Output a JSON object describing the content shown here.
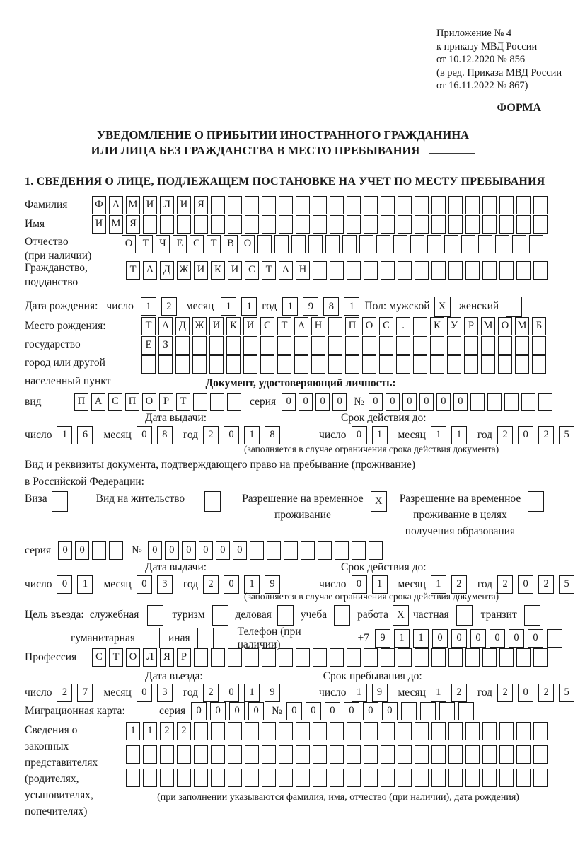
{
  "page": {
    "annex_lines": [
      "Приложение № 4",
      "к приказу МВД России",
      "от 10.12.2020 № 856",
      "(в ред. Приказа МВД России",
      "от 16.11.2022 № 867)"
    ],
    "form_marker": "ФОРМА",
    "title_line1": "УВЕДОМЛЕНИЕ О ПРИБЫТИИ ИНОСТРАННОГО ГРАЖДАНИНА",
    "title_line2": "ИЛИ ЛИЦА БЕЗ ГРАЖДАНСТВА В МЕСТО ПРЕБЫВАНИЯ",
    "section1_heading": "1. СВЕДЕНИЯ О ЛИЦЕ, ПОДЛЕЖАЩЕМ ПОСТАНОВКЕ НА УЧЕТ ПО МЕСТУ ПРЕБЫВАНИЯ"
  },
  "labels": {
    "surname": "Фамилия",
    "name": "Имя",
    "patronymic": "Отчество",
    "patronymic_note": "(при наличии)",
    "citizenship1": "Гражданство,",
    "citizenship2": "подданство",
    "birth_date": "Дата рождения:",
    "day": "число",
    "month": "месяц",
    "year": "год",
    "sex_male": "Пол: мужской",
    "sex_female": "женский",
    "birth_place": "Место рождения:",
    "state": "государство",
    "city1": "город или другой",
    "city2": "населенный пункт",
    "identity_doc_heading": "Документ, удостоверяющий личность:",
    "kind": "вид",
    "series": "серия",
    "number_sign": "№",
    "issue_date": "Дата выдачи:",
    "valid_until": "Срок действия до:",
    "valid_note": "(заполняется в случае ограничения срока действия документа)",
    "resid_doc_line1": "Вид и реквизиты документа, подтверждающего право на пребывание (проживание)",
    "resid_doc_line2": "в Российской Федерации:",
    "visa": "Виза",
    "residence_permit": "Вид на жительство",
    "temp_permit_l1": "Разрешение на временное",
    "temp_permit_l2": "проживание",
    "temp_edu_l1": "Разрешение на временное",
    "temp_edu_l2": "проживание в целях",
    "temp_edu_l3": "получения образования",
    "purpose": "Цель въезда:",
    "official": "служебная",
    "tourism": "туризм",
    "business": "деловая",
    "study": "учеба",
    "work": "работа",
    "private": "частная",
    "transit": "транзит",
    "humanitarian": "гуманитарная",
    "other": "иная",
    "phone": "Телефон (при наличии)",
    "phone_prefix": "+7",
    "profession": "Профессия",
    "entry_date": "Дата въезда:",
    "stay_until": "Срок пребывания до:",
    "migration_card": "Миграционная карта:",
    "guardians_l1": "Сведения о",
    "guardians_l2": "законных",
    "guardians_l3": "представителях",
    "guardians_l4": "(родителях,",
    "guardians_l5": "усыновителях,",
    "guardians_l6": "попечителях)",
    "guardians_note": "(при заполнении указываются фамилия, имя, отчество (при наличии), дата рождения)"
  },
  "values": {
    "surname": {
      "text": "ФАМИЛИЯ",
      "count": 27
    },
    "name": {
      "text": "ИМЯ",
      "count": 27
    },
    "patronymic": {
      "text": "ОТЧЕСТВО",
      "count": 25
    },
    "citizenship": {
      "text": "ТАДЖИКИСТАН",
      "count": 25
    },
    "birth_day": {
      "text": "12",
      "count": 2
    },
    "birth_month": {
      "text": "11",
      "count": 2
    },
    "birth_year": {
      "text": "1981",
      "count": 4
    },
    "sex_male_cb": {
      "text": "X",
      "count": 1
    },
    "sex_female_cb": {
      "text": "",
      "count": 1
    },
    "birth_place_row1": {
      "text": "ТАДЖИКИСТАН ПОС. КУРМОМБ",
      "count": 24
    },
    "birth_place_row2": {
      "text": "ЕЗ",
      "count": 24
    },
    "birth_place_row3": {
      "text": "",
      "count": 24
    },
    "id_kind": {
      "text": "ПАСПОРТ",
      "count": 10
    },
    "id_series": {
      "text": "0000",
      "count": 4
    },
    "id_number": {
      "text": "000000",
      "count": 11
    },
    "id_issue_day": {
      "text": "16",
      "count": 2
    },
    "id_issue_month": {
      "text": "08",
      "count": 2
    },
    "id_issue_year": {
      "text": "2018",
      "count": 4
    },
    "id_valid_day": {
      "text": "01",
      "count": 2
    },
    "id_valid_month": {
      "text": "11",
      "count": 2
    },
    "id_valid_year": {
      "text": "2025",
      "count": 4
    },
    "visa_cb": {
      "text": "",
      "count": 1
    },
    "residence_cb": {
      "text": "",
      "count": 1
    },
    "temp_permit_cb": {
      "text": "X",
      "count": 1
    },
    "temp_edu_cb": {
      "text": "",
      "count": 1
    },
    "permit_series": {
      "text": "00",
      "count": 4
    },
    "permit_number": {
      "text": "000000",
      "count": 14
    },
    "permit_issue_day": {
      "text": "01",
      "count": 2
    },
    "permit_issue_month": {
      "text": "03",
      "count": 2
    },
    "permit_issue_year": {
      "text": "2019",
      "count": 4
    },
    "permit_valid_day": {
      "text": "01",
      "count": 2
    },
    "permit_valid_month": {
      "text": "12",
      "count": 2
    },
    "permit_valid_year": {
      "text": "2025",
      "count": 4
    },
    "purpose_official_cb": {
      "text": "",
      "count": 1
    },
    "purpose_tourism_cb": {
      "text": "",
      "count": 1
    },
    "purpose_business_cb": {
      "text": "",
      "count": 1
    },
    "purpose_study_cb": {
      "text": "",
      "count": 1
    },
    "purpose_work_cb": {
      "text": "X",
      "count": 1
    },
    "purpose_private_cb": {
      "text": "",
      "count": 1
    },
    "purpose_transit_cb": {
      "text": "",
      "count": 1
    },
    "purpose_humanitarian_cb": {
      "text": "",
      "count": 1
    },
    "purpose_other_cb": {
      "text": "",
      "count": 1
    },
    "phone_digits": {
      "text": "911000000",
      "count": 10
    },
    "profession": {
      "text": "СТОЛЯР",
      "count": 27
    },
    "entry_day": {
      "text": "27",
      "count": 2
    },
    "entry_month": {
      "text": "03",
      "count": 2
    },
    "entry_year": {
      "text": "2019",
      "count": 4
    },
    "stay_day": {
      "text": "19",
      "count": 2
    },
    "stay_month": {
      "text": "12",
      "count": 2
    },
    "stay_year": {
      "text": "2025",
      "count": 4
    },
    "mig_series": {
      "text": "0000",
      "count": 4
    },
    "mig_number": {
      "text": "000000",
      "count": 10
    },
    "guardians_row1": {
      "text": "1122",
      "count": 25
    },
    "guardians_row2": {
      "text": "",
      "count": 25
    },
    "guardians_row3": {
      "text": "",
      "count": 25
    }
  }
}
